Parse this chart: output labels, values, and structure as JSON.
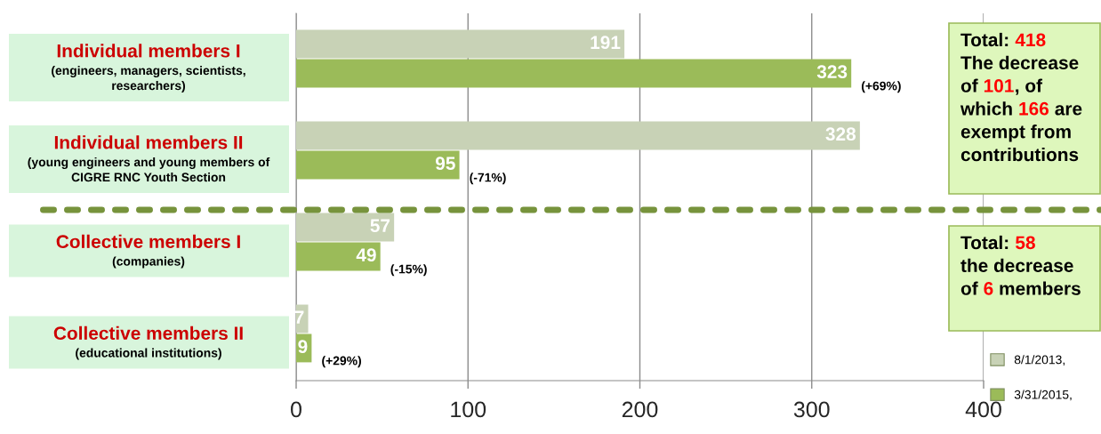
{
  "chart_data": {
    "type": "bar",
    "orientation": "horizontal",
    "categories": [
      "Individual members I\n(engineers, managers, scientists,\nresearchers)",
      "Individual members II\n(young engineers and young members of\nCIGRE RNC Youth Section",
      "Collective members I\n(companies)",
      "Collective members II\n(educational institutions)"
    ],
    "series": [
      {
        "name": "8/1/2013,",
        "color": "#c8d2b6",
        "values": [
          191,
          328,
          57,
          7
        ]
      },
      {
        "name": "3/31/2015,",
        "color": "#9bbb59",
        "values": [
          323,
          95,
          49,
          9
        ]
      }
    ],
    "xlim": [
      0,
      400
    ],
    "xticks": [
      0,
      100,
      200,
      300,
      400
    ],
    "grid": "x",
    "data_labels": true,
    "legend": "bottom right",
    "annotations": [
      "Total: 418\nThe decrease\nof 101, of\nwhich 166 are\nexempt from\ncontributions",
      "Total: 58\nthe decrease\nof 6 members",
      {
        "text": "(+69%)",
        "x": 323,
        "y": "Individual members I\n(engineers, managers, scientists,\nresearchers)"
      },
      {
        "text": "(-71%)",
        "x": 95,
        "y": "Individual members II\n(young engineers and young members of\nCIGRE RNC Youth Section"
      },
      {
        "text": "(-15%)",
        "x": 49,
        "y": "Collective members I\n(companies)"
      },
      {
        "text": "(+29%)",
        "x": 9,
        "y": "Collective members II\n(educational institutions)"
      }
    ]
  }
}
